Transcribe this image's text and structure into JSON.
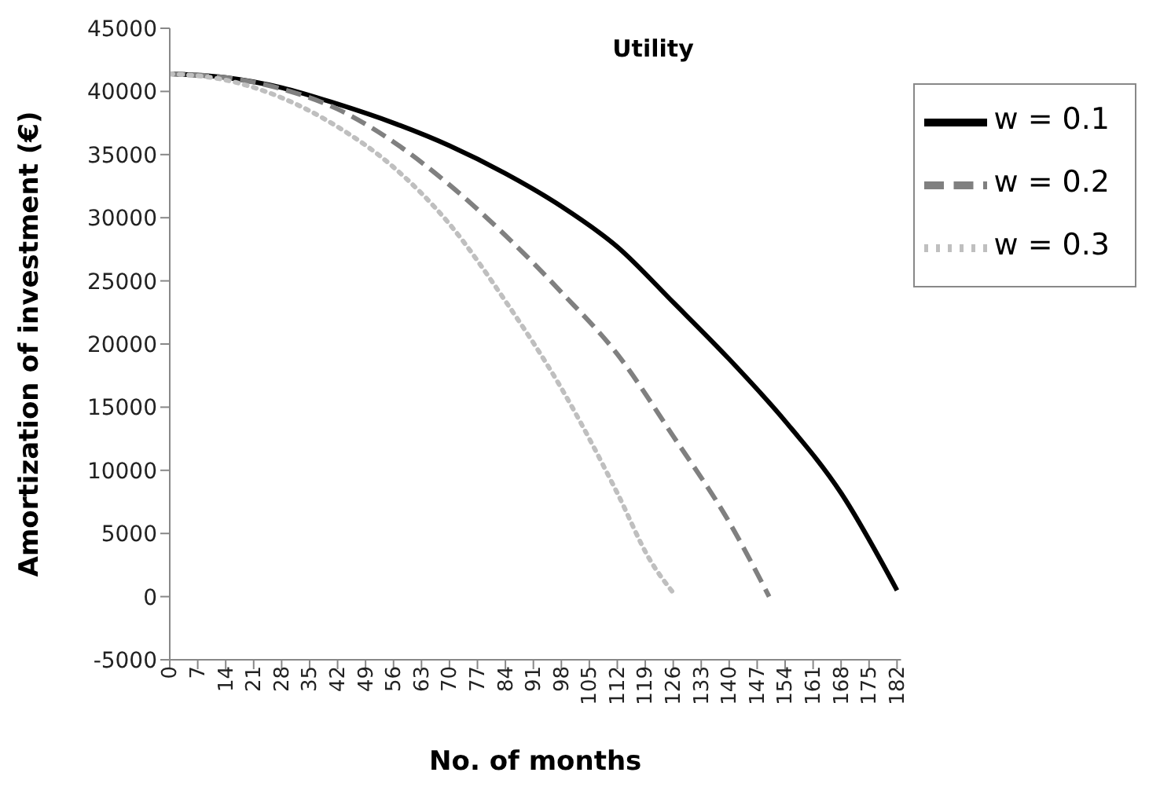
{
  "chart_data": {
    "type": "line",
    "title": "Utility",
    "xlabel": "No. of months",
    "ylabel": "Amortization of investment (€)",
    "series": [
      {
        "name": "w = 0.1",
        "color": "#000000",
        "line_style": "solid",
        "x": [
          0,
          14,
          28,
          42,
          56,
          70,
          84,
          98,
          112,
          126,
          140,
          154,
          168,
          182
        ],
        "values": [
          41400,
          41100,
          40300,
          39000,
          37500,
          35700,
          33500,
          30900,
          27700,
          23300,
          18800,
          13900,
          8200,
          500
        ]
      },
      {
        "name": "w = 0.2",
        "color": "#808080",
        "line_style": "dashed",
        "x": [
          0,
          14,
          28,
          42,
          56,
          70,
          84,
          98,
          112,
          126,
          140,
          150
        ],
        "values": [
          41400,
          41100,
          40200,
          38600,
          36000,
          32600,
          28600,
          24100,
          19200,
          12700,
          5900,
          0
        ]
      },
      {
        "name": "w = 0.3",
        "color": "#bfbfbf",
        "line_style": "dotted",
        "x": [
          0,
          14,
          28,
          42,
          56,
          70,
          84,
          98,
          112,
          120,
          126
        ],
        "values": [
          41400,
          40900,
          39500,
          37200,
          34000,
          29500,
          23400,
          16500,
          8200,
          3000,
          300
        ]
      }
    ],
    "xlim": [
      0,
      183
    ],
    "xticks": [
      0,
      7,
      14,
      21,
      28,
      35,
      42,
      49,
      56,
      63,
      70,
      77,
      84,
      91,
      98,
      105,
      112,
      119,
      126,
      133,
      140,
      147,
      154,
      161,
      168,
      175,
      182
    ],
    "ylim": [
      -5000,
      45000
    ],
    "yticks": [
      -5000,
      0,
      5000,
      10000,
      15000,
      20000,
      25000,
      30000,
      35000,
      40000,
      45000
    ],
    "grid": false,
    "legend": "top right",
    "marker": "none"
  }
}
